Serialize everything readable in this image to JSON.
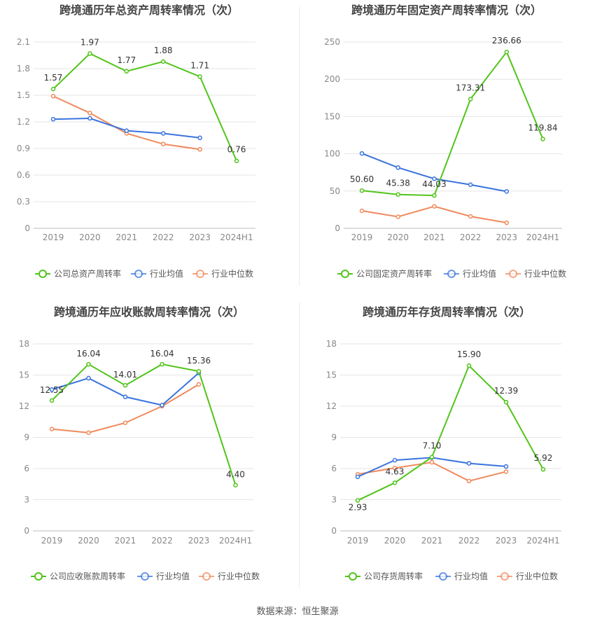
{
  "source_text": "数据来源：恒生聚源",
  "colors": {
    "company": "#52c41a",
    "avg": "#3b73dd",
    "median": "#f08a5d"
  },
  "chart_data": [
    {
      "type": "line",
      "title": "跨境通历年总资产周转率情况（次）",
      "categories": [
        "2019",
        "2020",
        "2021",
        "2022",
        "2023",
        "2024H1"
      ],
      "ylim": [
        0,
        2.1
      ],
      "yticks": [
        "0",
        "0.3",
        "0.6",
        "0.9",
        "1.2",
        "1.5",
        "1.8",
        "2.1"
      ],
      "series": [
        {
          "name": "公司总资产周转率",
          "role": "company",
          "values": [
            1.57,
            1.97,
            1.77,
            1.88,
            1.71,
            0.76
          ],
          "labels": [
            "1.57",
            "1.97",
            "1.77",
            "1.88",
            "1.71",
            "0.76"
          ]
        },
        {
          "name": "行业均值",
          "role": "avg",
          "values": [
            1.23,
            1.24,
            1.1,
            1.07,
            1.02,
            null
          ]
        },
        {
          "name": "行业中位数",
          "role": "median",
          "values": [
            1.49,
            1.3,
            1.07,
            0.95,
            0.89,
            null
          ]
        }
      ]
    },
    {
      "type": "line",
      "title": "跨境通历年固定资产周转率情况（次）",
      "categories": [
        "2019",
        "2020",
        "2021",
        "2022",
        "2023",
        "2024H1"
      ],
      "ylim": [
        0,
        250
      ],
      "yticks": [
        "0",
        "50",
        "100",
        "150",
        "200",
        "250"
      ],
      "series": [
        {
          "name": "公司固定资产周转率",
          "role": "company",
          "values": [
            50.6,
            45.38,
            44.03,
            173.31,
            236.66,
            119.84
          ],
          "labels": [
            "50.60",
            "45.38",
            "44.03",
            "173.31",
            "236.66",
            "119.84"
          ]
        },
        {
          "name": "行业均值",
          "role": "avg",
          "values": [
            100.5,
            81.5,
            66.5,
            58.5,
            49.5,
            null
          ]
        },
        {
          "name": "行业中位数",
          "role": "median",
          "values": [
            23.5,
            15.5,
            29.5,
            16,
            7.5,
            null
          ]
        }
      ]
    },
    {
      "type": "line",
      "title": "跨境通历年应收账款周转率情况（次）",
      "categories": [
        "2019",
        "2020",
        "2021",
        "2022",
        "2023",
        "2024H1"
      ],
      "ylim": [
        0,
        18
      ],
      "yticks": [
        "0",
        "3",
        "6",
        "9",
        "12",
        "15",
        "18"
      ],
      "series": [
        {
          "name": "公司应收账款周转率",
          "role": "company",
          "values": [
            12.55,
            16.04,
            14.01,
            16.04,
            15.36,
            4.4
          ],
          "labels": [
            "12.55",
            "16.04",
            "14.01",
            "16.04",
            "15.36",
            "4.40"
          ]
        },
        {
          "name": "行业均值",
          "role": "avg",
          "values": [
            13.6,
            14.7,
            12.9,
            12.1,
            15.2,
            null
          ]
        },
        {
          "name": "行业中位数",
          "role": "median",
          "values": [
            9.8,
            9.45,
            10.4,
            12.0,
            14.1,
            null
          ]
        }
      ]
    },
    {
      "type": "line",
      "title": "跨境通历年存货周转率情况（次）",
      "categories": [
        "2019",
        "2020",
        "2021",
        "2022",
        "2023",
        "2024H1"
      ],
      "ylim": [
        0,
        18
      ],
      "yticks": [
        "0",
        "3",
        "6",
        "9",
        "12",
        "15",
        "18"
      ],
      "series": [
        {
          "name": "公司存货周转率",
          "role": "company",
          "values": [
            2.93,
            4.63,
            7.1,
            15.9,
            12.39,
            5.92
          ],
          "labels": [
            "2.93",
            "4.63",
            "7.10",
            "15.90",
            "12.39",
            "5.92"
          ]
        },
        {
          "name": "行业均值",
          "role": "avg",
          "values": [
            5.2,
            6.8,
            7.05,
            6.5,
            6.2,
            null
          ]
        },
        {
          "name": "行业中位数",
          "role": "median",
          "values": [
            5.45,
            6.05,
            6.6,
            4.8,
            5.7,
            null
          ]
        }
      ]
    }
  ]
}
